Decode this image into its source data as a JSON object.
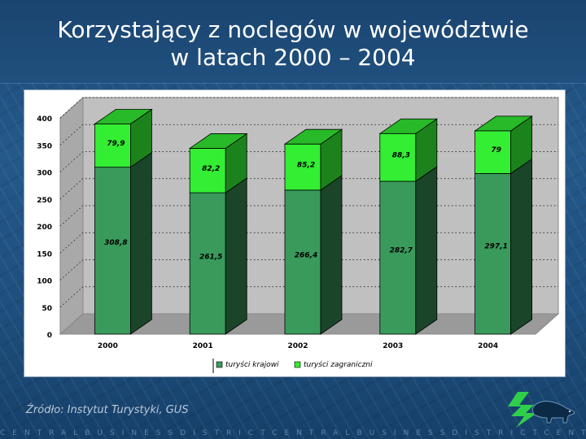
{
  "slide": {
    "title": "Korzystający z noclegów w województwie\nw latach 2000 – 2004",
    "source": "Źródło: Instytut Turystyki, GUS",
    "footer_text": "CENTRALBUSINESSDISTRICTCENTRALBUSINESSDISTRICTCENTRAL",
    "logo_icon": "bison-logo-icon"
  },
  "chart_data": {
    "type": "bar",
    "stacked": true,
    "three_d": true,
    "categories": [
      "2000",
      "2001",
      "2002",
      "2003",
      "2004"
    ],
    "series": [
      {
        "name": "turyści krajowi",
        "color": "#3a9a5c",
        "values": [
          308.8,
          261.5,
          266.4,
          282.7,
          297.1
        ],
        "labels": [
          "308,8",
          "261,5",
          "266,4",
          "282,7",
          "297,1"
        ]
      },
      {
        "name": "turyści zagraniczni",
        "color": "#33ee33",
        "values": [
          79.9,
          82.2,
          85.2,
          88.3,
          79
        ],
        "labels": [
          "79,9",
          "82,2",
          "85,2",
          "88,3",
          "79"
        ]
      }
    ],
    "y_ticks": [
      "0",
      "50",
      "100",
      "150",
      "200",
      "250",
      "300",
      "350",
      "400"
    ],
    "ylim": [
      0,
      400
    ],
    "grid": true,
    "legend_position": "bottom"
  }
}
